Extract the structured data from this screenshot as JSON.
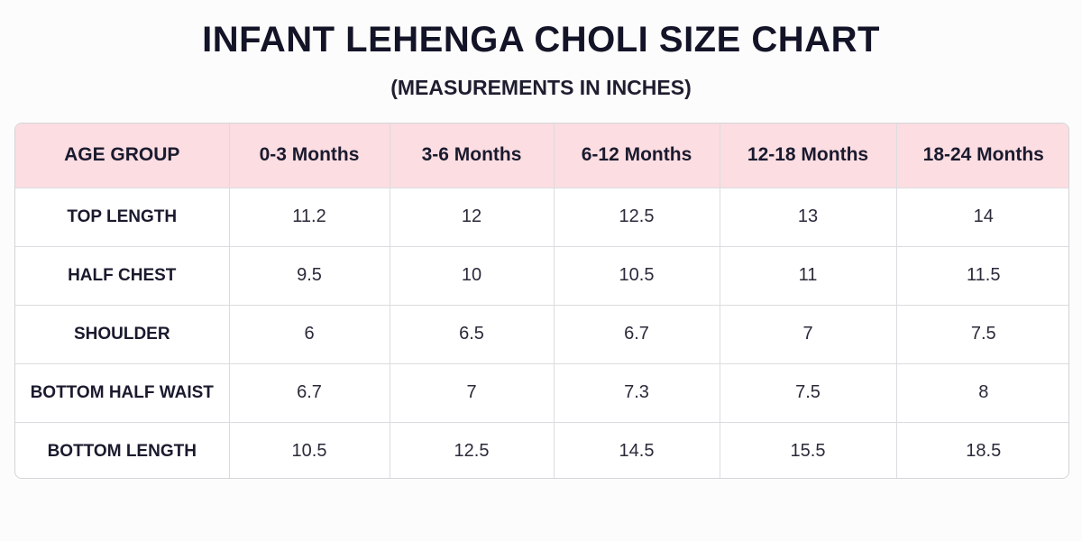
{
  "title": "INFANT LEHENGA CHOLI SIZE CHART",
  "subtitle": "(MEASUREMENTS IN INCHES)",
  "header_bg": "#fbdde2",
  "table": {
    "header": [
      "AGE GROUP",
      "0-3 Months",
      "3-6 Months",
      "6-12 Months",
      "12-18 Months",
      "18-24 Months"
    ],
    "rows": [
      {
        "label": "TOP LENGTH",
        "values": [
          "11.2",
          "12",
          "12.5",
          "13",
          "14"
        ]
      },
      {
        "label": "HALF CHEST",
        "values": [
          "9.5",
          "10",
          "10.5",
          "11",
          "11.5"
        ]
      },
      {
        "label": "SHOULDER",
        "values": [
          "6",
          "6.5",
          "6.7",
          "7",
          "7.5"
        ]
      },
      {
        "label": "BOTTOM HALF WAIST",
        "values": [
          "6.7",
          "7",
          "7.3",
          "7.5",
          "8"
        ]
      },
      {
        "label": "BOTTOM LENGTH",
        "values": [
          "10.5",
          "12.5",
          "14.5",
          "15.5",
          "18.5"
        ]
      }
    ]
  }
}
